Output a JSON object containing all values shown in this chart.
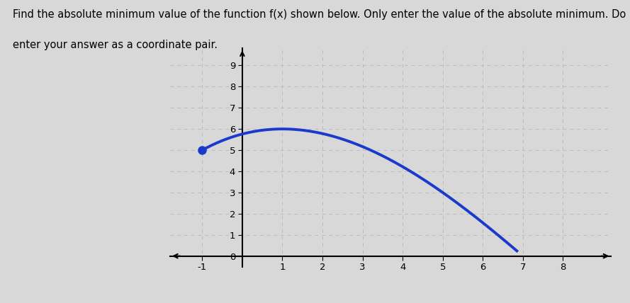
{
  "curve_color": "#1a3acc",
  "dot_color": "#1a3acc",
  "dot_x": -1,
  "dot_y": 5,
  "x_start": -1,
  "x_end": 6.85,
  "xlim": [
    -1.8,
    9.2
  ],
  "ylim": [
    -0.5,
    9.8
  ],
  "x_ticks": [
    -1,
    0,
    1,
    2,
    3,
    4,
    5,
    6,
    7,
    8
  ],
  "y_ticks": [
    0,
    1,
    2,
    3,
    4,
    5,
    6,
    7,
    8,
    9
  ],
  "background_color": "#d8d8d8",
  "grid_color": "#bbbbbb",
  "line_width": 2.8,
  "fig_width": 8.89,
  "fig_height": 4.28,
  "text_line1": "Find the absolute minimum value of the function f(x) shown below. Only enter the value of the absolute minimum. Do not",
  "text_line2": "enter your answer as a coordinate pair.",
  "text_fontsize": 10.5,
  "coeff_a": -0.09375,
  "coeff_b": 0.5,
  "coeff_c": 5.6875,
  "cubic_use": true,
  "cubic_a": -0.08,
  "cubic_b": 0.0,
  "cubic_c": -0.5,
  "cubic_d": 5.92
}
